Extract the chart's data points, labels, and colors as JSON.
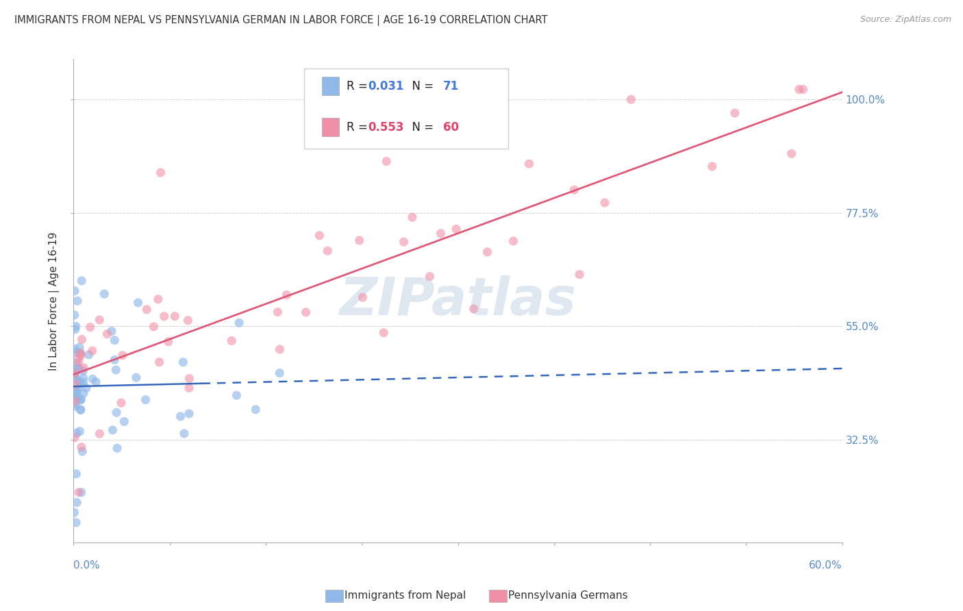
{
  "title": "IMMIGRANTS FROM NEPAL VS PENNSYLVANIA GERMAN IN LABOR FORCE | AGE 16-19 CORRELATION CHART",
  "source": "Source: ZipAtlas.com",
  "ylabel": "In Labor Force | Age 16-19",
  "watermark": "ZIPatlas",
  "nepal_R": 0.031,
  "nepal_N": 71,
  "pagerman_R": 0.553,
  "pagerman_N": 60,
  "blue_color": "#90b8e8",
  "pink_color": "#f090a8",
  "blue_line_color": "#3366bb",
  "pink_line_color": "#e05878",
  "x_range": [
    0.0,
    0.6
  ],
  "y_range": [
    0.12,
    1.08
  ],
  "y_ticks": [
    0.325,
    0.55,
    0.775,
    1.0
  ],
  "y_tick_labels": [
    "32.5%",
    "55.0%",
    "77.5%",
    "100.0%"
  ],
  "grid_color": "#cccccc",
  "axis_color": "#aaaaaa",
  "label_color": "#5588cc",
  "title_color": "#333333",
  "source_color": "#999999",
  "legend_R_blue": "#4477dd",
  "legend_R_pink": "#dd4466"
}
